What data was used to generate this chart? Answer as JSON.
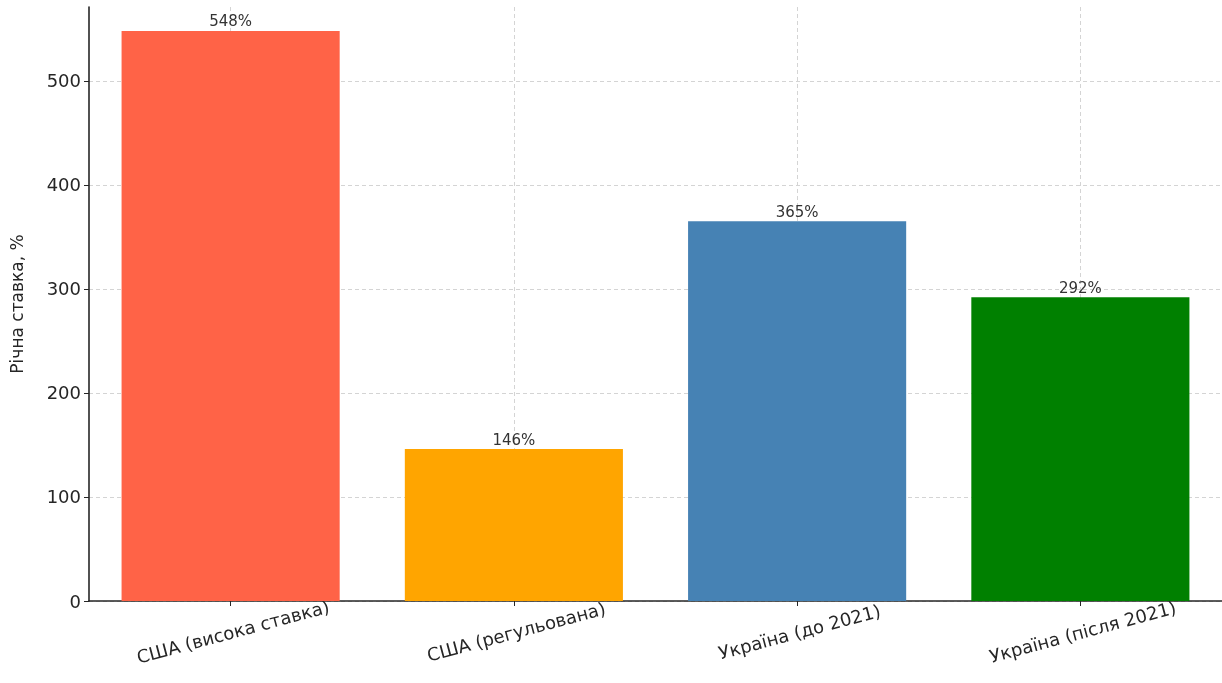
{
  "chart_data": {
    "type": "bar",
    "categories": [
      "США (висока ставка)",
      "США (регульована)",
      "Україна (до 2021)",
      "Україна (після 2021)"
    ],
    "values": [
      548,
      146,
      365,
      292
    ],
    "colors": [
      "#ff6347",
      "#ffa500",
      "#4682b4",
      "#008000"
    ],
    "value_labels": [
      "548%",
      "146%",
      "365%",
      "292%"
    ],
    "ylabel": "Річна ставка, %",
    "ylim": [
      0,
      571
    ],
    "yticks": [
      0,
      100,
      200,
      300,
      400,
      500
    ],
    "grid": true
  }
}
